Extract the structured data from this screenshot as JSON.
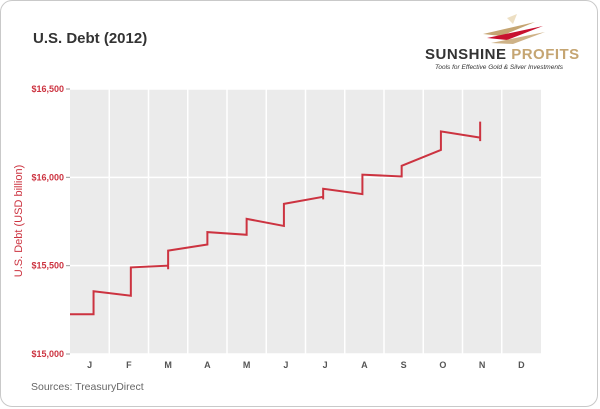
{
  "brand": {
    "name_part1": "SUNSHINE",
    "name_part2": "PROFITS",
    "tagline": "Tools for Effective Gold & Silver Investments"
  },
  "source_note": "Sources: TreasuryDirect",
  "colors": {
    "series": "#cc3340",
    "plot_bg": "#ebebeb",
    "grid": "#ffffff",
    "logo_gold": "#c5a572",
    "logo_red": "#c8102e"
  },
  "chart_data": {
    "type": "line",
    "title": "U.S. Debt (2012)",
    "ylabel": "U.S. Debt (USD billion)",
    "xlabel": "",
    "ylim": [
      15000,
      16500
    ],
    "xlim": [
      0,
      12
    ],
    "yticks": [
      15000,
      15500,
      16000,
      16500
    ],
    "ytick_labels": [
      "$15,000",
      "$15,500",
      "$16,000",
      "$16,500"
    ],
    "categories": [
      "J",
      "F",
      "M",
      "A",
      "M",
      "J",
      "J",
      "A",
      "S",
      "O",
      "N",
      "D"
    ],
    "grid": true,
    "series": [
      {
        "points": [
          [
            0.0,
            15225
          ],
          [
            0.6,
            15225
          ],
          [
            0.6,
            15355
          ],
          [
            1.55,
            15330
          ],
          [
            1.55,
            15490
          ],
          [
            2.5,
            15500
          ],
          [
            2.5,
            15480
          ],
          [
            2.5,
            15585
          ],
          [
            3.5,
            15620
          ],
          [
            3.5,
            15690
          ],
          [
            4.5,
            15675
          ],
          [
            4.5,
            15765
          ],
          [
            5.45,
            15725
          ],
          [
            5.45,
            15850
          ],
          [
            6.45,
            15890
          ],
          [
            6.45,
            15875
          ],
          [
            6.45,
            15935
          ],
          [
            7.45,
            15905
          ],
          [
            7.45,
            16015
          ],
          [
            8.45,
            16005
          ],
          [
            8.45,
            16065
          ],
          [
            9.45,
            16155
          ],
          [
            9.45,
            16260
          ],
          [
            10.45,
            16225
          ],
          [
            10.45,
            16205
          ],
          [
            10.45,
            16315
          ]
        ]
      }
    ]
  }
}
